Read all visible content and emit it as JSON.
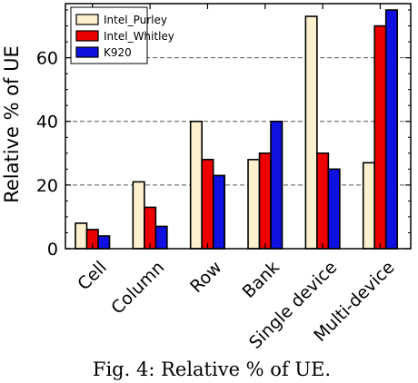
{
  "chart_data": {
    "type": "bar",
    "categories": [
      "Cell",
      "Column",
      "Row",
      "Bank",
      "Single device",
      "Multi-device"
    ],
    "series": [
      {
        "name": "Intel_Purley",
        "color": "#fdf0cf",
        "values": [
          8,
          21,
          40,
          28,
          73,
          27
        ]
      },
      {
        "name": "Intel_Whitley",
        "color": "#ee0000",
        "values": [
          6,
          13,
          28,
          30,
          30,
          70
        ]
      },
      {
        "name": "K920",
        "color": "#1010e0",
        "values": [
          4,
          7,
          23,
          40,
          25,
          75
        ]
      }
    ],
    "title": "",
    "xlabel": "",
    "ylabel": "Relative % of UE",
    "ylim": [
      0,
      77
    ],
    "yticks": [
      0,
      20,
      40,
      60
    ],
    "grid": "y-dashed",
    "legend": "top-left"
  },
  "caption": "Fig. 4: Relative % of UE."
}
